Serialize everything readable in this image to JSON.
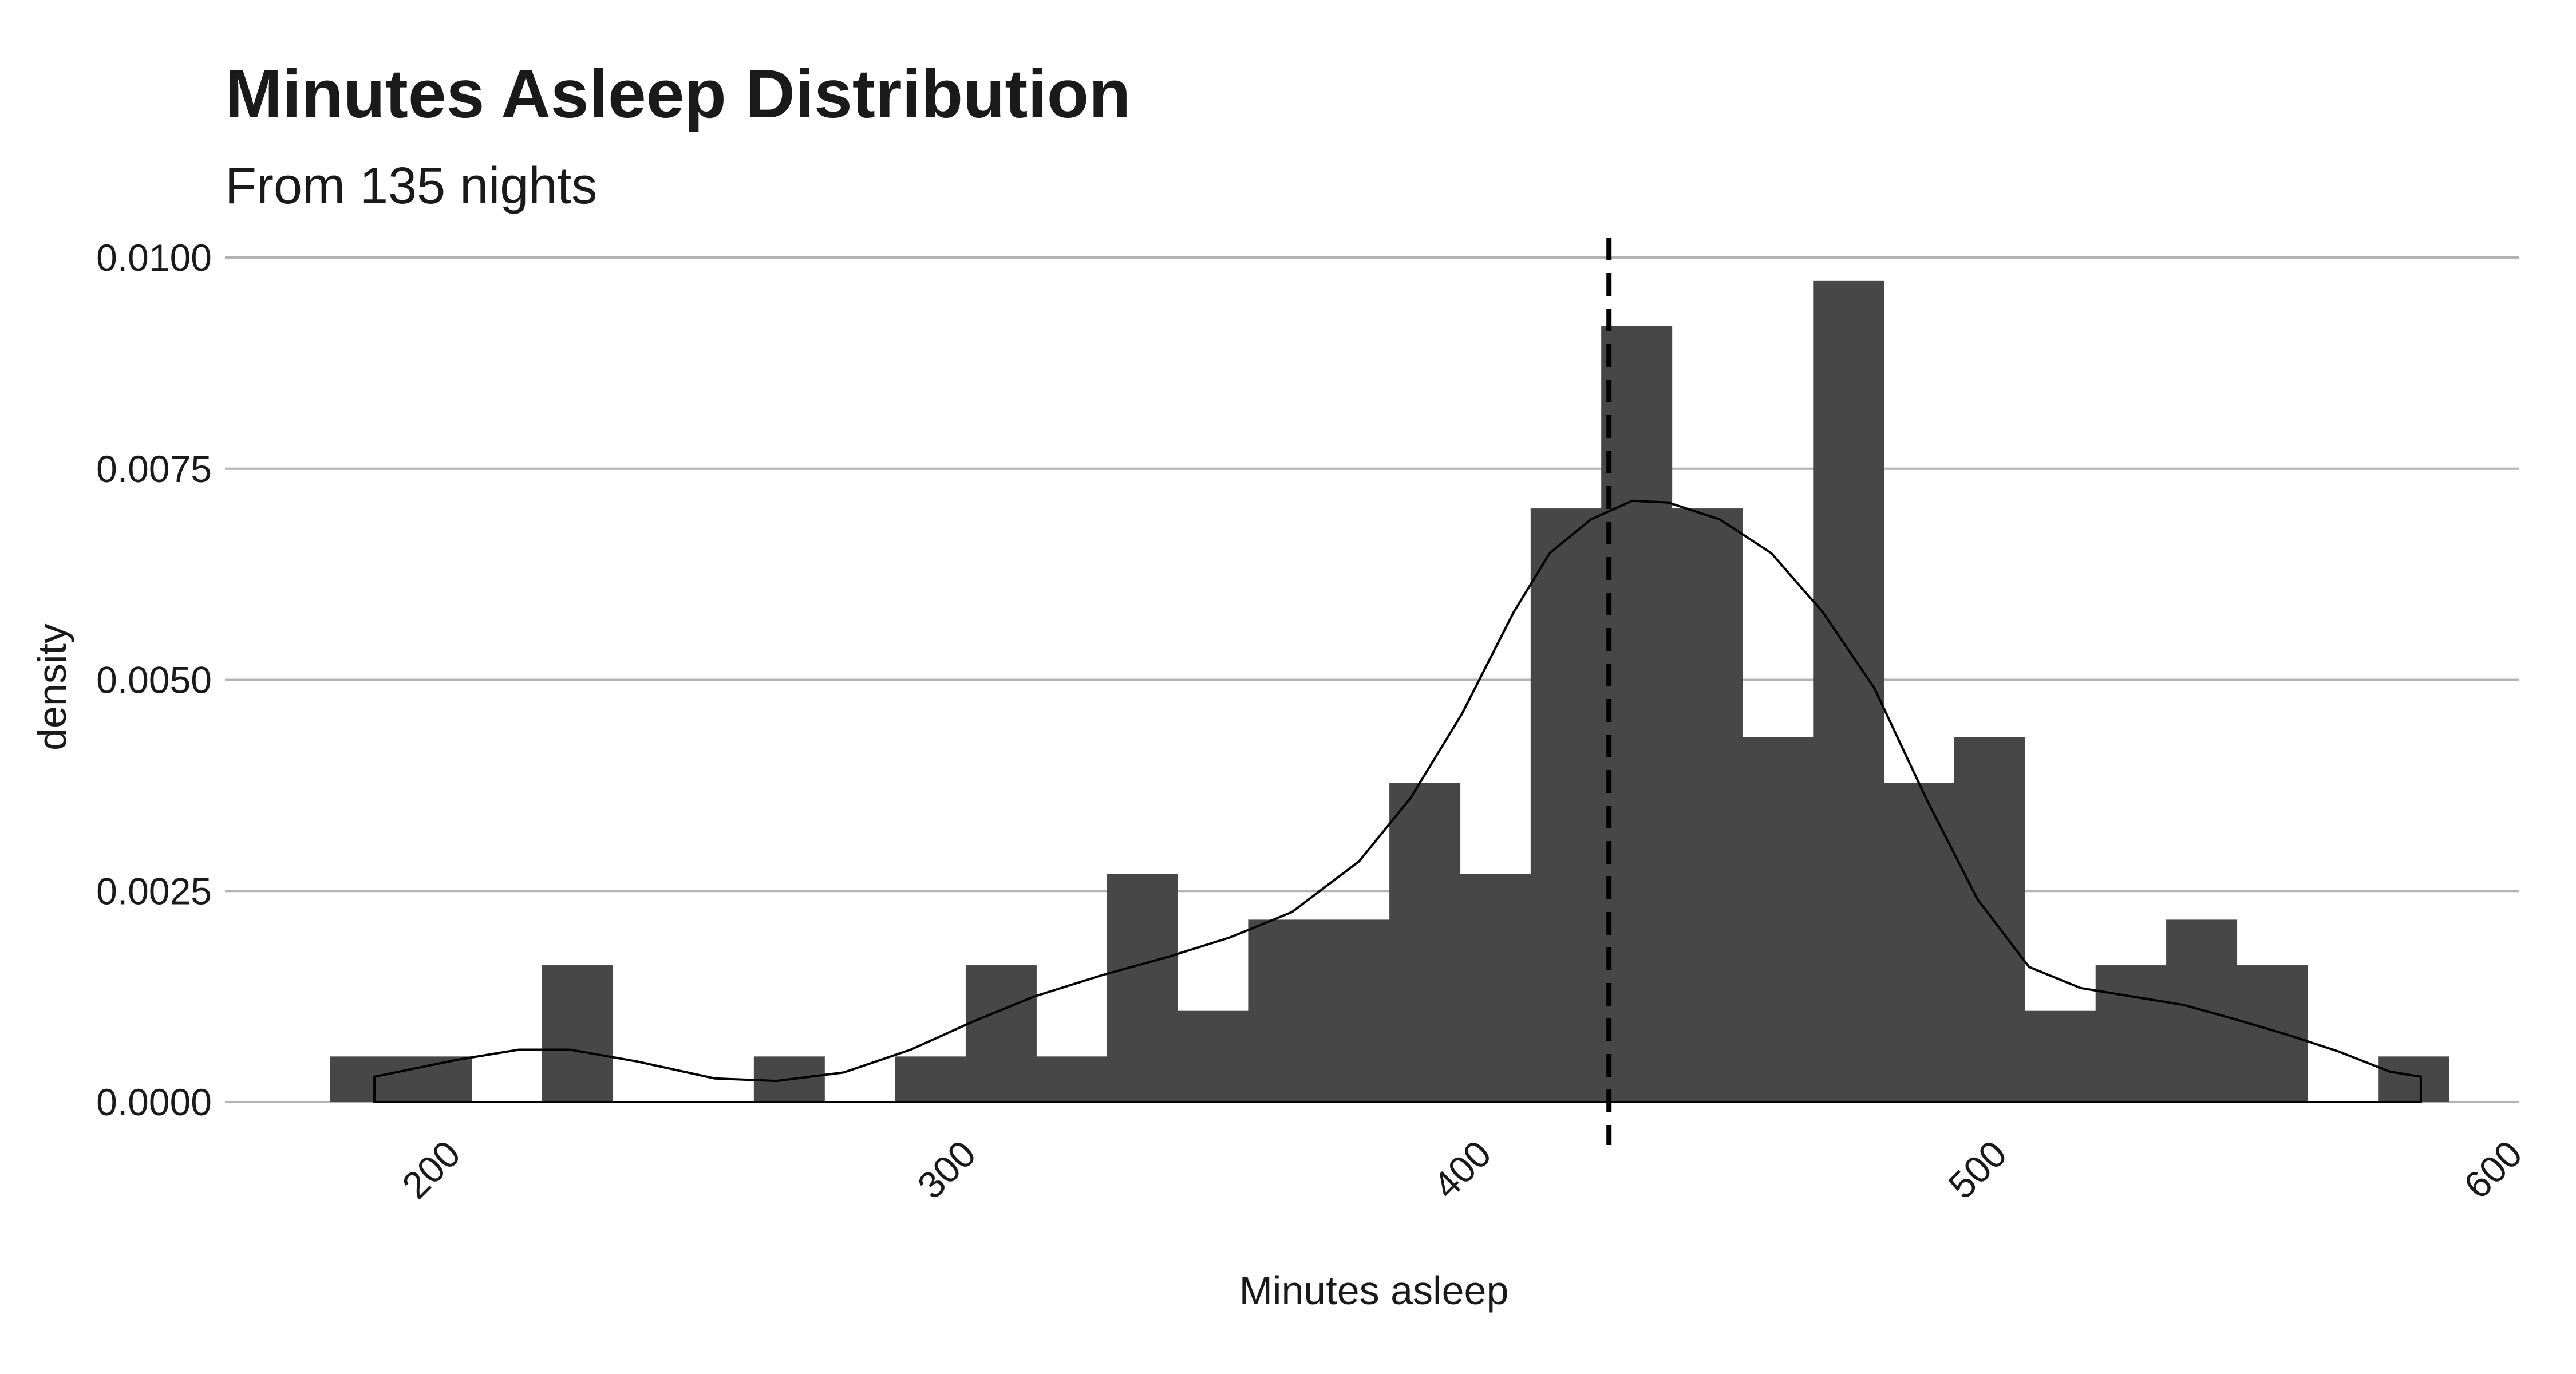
{
  "chart_data": {
    "type": "histogram",
    "title": "Minutes Asleep Distribution",
    "subtitle": "From 135 nights",
    "xlabel": "Minutes asleep",
    "ylabel": "density",
    "xlim": [
      155,
      600
    ],
    "ylim": [
      0,
      0.01
    ],
    "xticks": [
      "200",
      "300",
      "400",
      "500",
      "600"
    ],
    "yticks": [
      "0.0000",
      "0.0025",
      "0.0050",
      "0.0075",
      "0.0100"
    ],
    "grid": "horizontal-major",
    "bin_width": 13.7,
    "bins": [
      {
        "x0": 175.4,
        "x1": 189.1,
        "density": 0.00054
      },
      {
        "x0": 189.1,
        "x1": 202.8,
        "density": 0.00054
      },
      {
        "x0": 202.8,
        "x1": 216.5,
        "density": 0.0
      },
      {
        "x0": 216.5,
        "x1": 230.2,
        "density": 0.00162
      },
      {
        "x0": 230.2,
        "x1": 243.9,
        "density": 0.0
      },
      {
        "x0": 243.9,
        "x1": 257.6,
        "density": 0.0
      },
      {
        "x0": 257.6,
        "x1": 271.3,
        "density": 0.00054
      },
      {
        "x0": 271.3,
        "x1": 285.0,
        "density": 0.0
      },
      {
        "x0": 285.0,
        "x1": 298.7,
        "density": 0.00054
      },
      {
        "x0": 298.7,
        "x1": 312.4,
        "density": 0.00162
      },
      {
        "x0": 312.4,
        "x1": 326.1,
        "density": 0.00054
      },
      {
        "x0": 326.1,
        "x1": 339.8,
        "density": 0.0027
      },
      {
        "x0": 339.8,
        "x1": 353.5,
        "density": 0.00108
      },
      {
        "x0": 353.5,
        "x1": 367.2,
        "density": 0.00216
      },
      {
        "x0": 367.2,
        "x1": 380.9,
        "density": 0.00216
      },
      {
        "x0": 380.9,
        "x1": 394.6,
        "density": 0.00378
      },
      {
        "x0": 394.6,
        "x1": 408.3,
        "density": 0.0027
      },
      {
        "x0": 408.3,
        "x1": 422.0,
        "density": 0.00703
      },
      {
        "x0": 422.0,
        "x1": 435.7,
        "density": 0.00919
      },
      {
        "x0": 435.7,
        "x1": 449.4,
        "density": 0.00703
      },
      {
        "x0": 449.4,
        "x1": 463.1,
        "density": 0.00432
      },
      {
        "x0": 463.1,
        "x1": 476.8,
        "density": 0.00973
      },
      {
        "x0": 476.8,
        "x1": 490.5,
        "density": 0.00378
      },
      {
        "x0": 490.5,
        "x1": 504.2,
        "density": 0.00432
      },
      {
        "x0": 504.2,
        "x1": 517.9,
        "density": 0.00108
      },
      {
        "x0": 517.9,
        "x1": 531.6,
        "density": 0.00162
      },
      {
        "x0": 531.6,
        "x1": 545.3,
        "density": 0.00216
      },
      {
        "x0": 545.3,
        "x1": 559.0,
        "density": 0.00162
      },
      {
        "x0": 559.0,
        "x1": 572.7,
        "density": 0.0
      },
      {
        "x0": 572.7,
        "x1": 586.4,
        "density": 0.00054
      }
    ],
    "density_curve": {
      "x": [
        184,
        200,
        212,
        222,
        235,
        250,
        262,
        275,
        288,
        300,
        312,
        325,
        338,
        350,
        362,
        375,
        385,
        395,
        405,
        412,
        420,
        428,
        435,
        445,
        455,
        465,
        475,
        485,
        495,
        505,
        515,
        525,
        535,
        545,
        555,
        565,
        570,
        575,
        581
      ],
      "y": [
        0.0003,
        0.0005,
        0.00062,
        0.00062,
        0.00048,
        0.00028,
        0.00025,
        0.00035,
        0.00062,
        0.00095,
        0.00125,
        0.0015,
        0.00172,
        0.00195,
        0.00225,
        0.00285,
        0.0036,
        0.0046,
        0.0058,
        0.0065,
        0.0069,
        0.00712,
        0.0071,
        0.0069,
        0.0065,
        0.0058,
        0.0049,
        0.0036,
        0.0024,
        0.0016,
        0.00135,
        0.00125,
        0.00115,
        0.00098,
        0.0008,
        0.0006,
        0.00048,
        0.00036,
        0.0003
      ]
    },
    "reference_line": {
      "x": 423.5,
      "style": "dashed"
    }
  }
}
